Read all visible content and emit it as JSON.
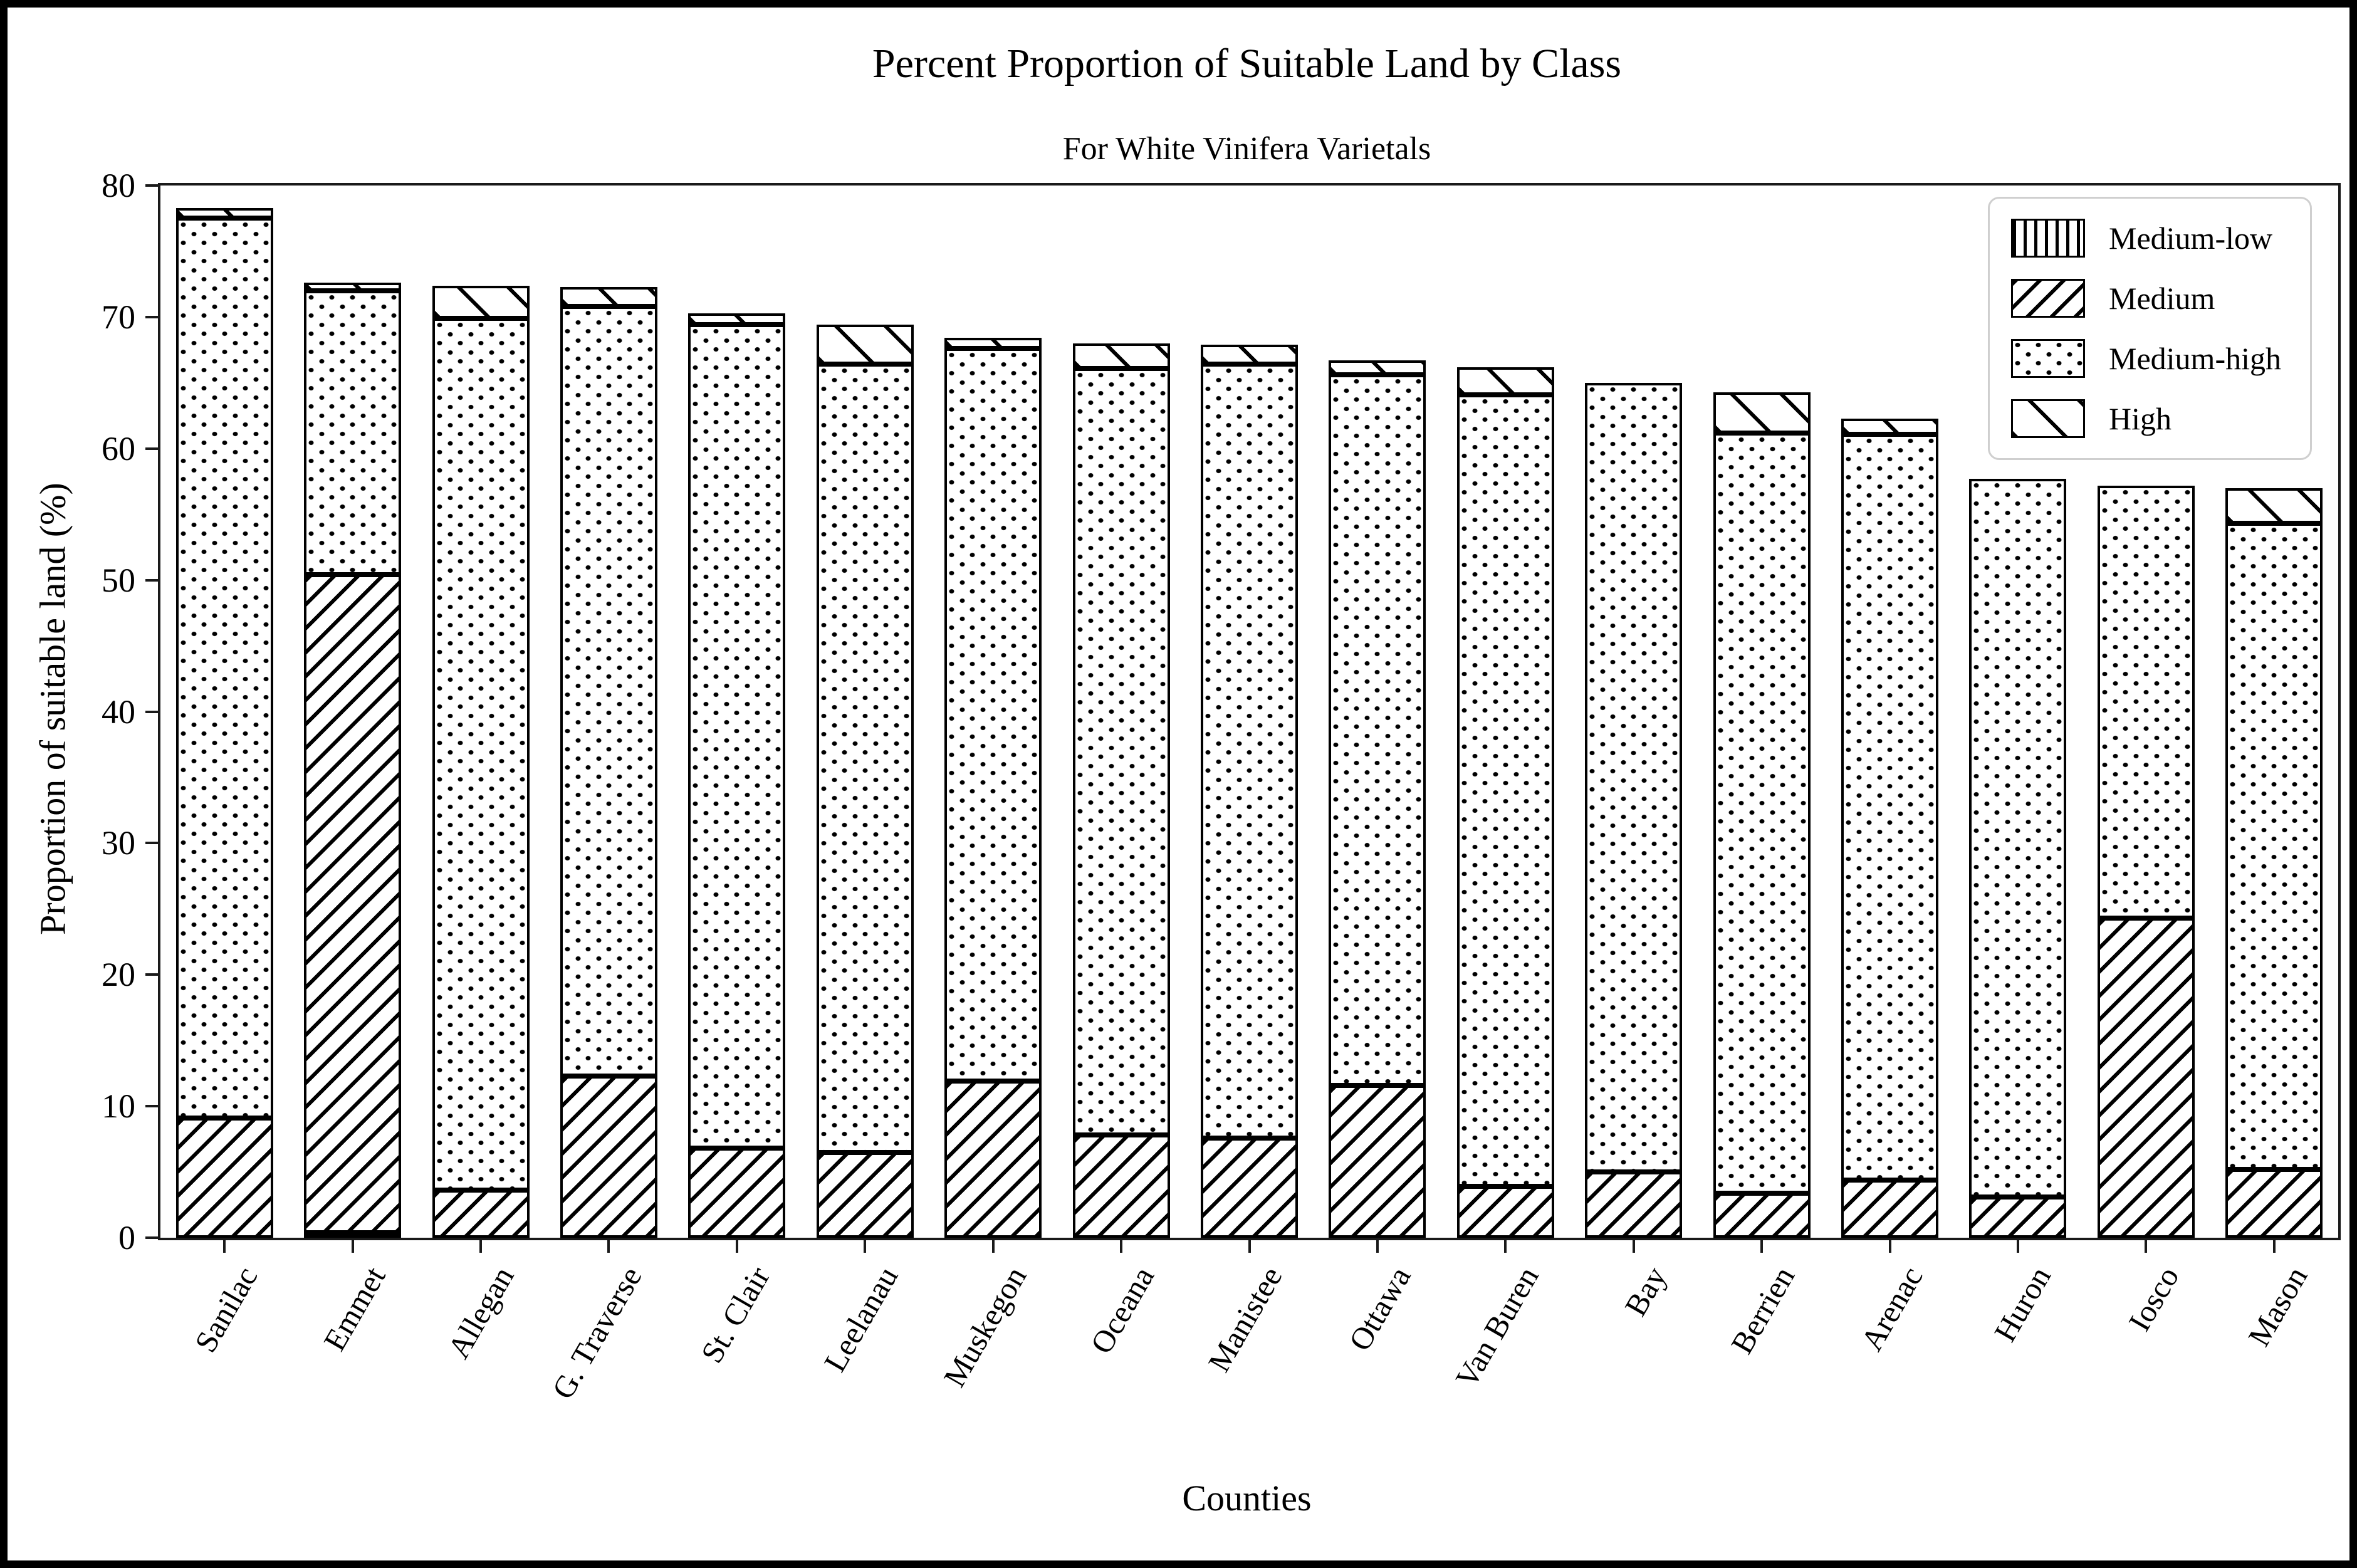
{
  "chart_data": {
    "type": "bar",
    "stacked": true,
    "title": "Percent Proportion of Suitable Land by Class",
    "subtitle": "For White Vinifera Varietals",
    "xlabel": "Counties",
    "ylabel": "Proportion of suitable land (%)",
    "ylim": [
      0,
      80
    ],
    "yticks": [
      0,
      10,
      20,
      30,
      40,
      50,
      60,
      70,
      80
    ],
    "grid": false,
    "legend_position": "upper right",
    "foreground_color": "#000000",
    "background_color": "#ffffff",
    "categories": [
      "Sanilac",
      "Emmet",
      "Allegan",
      "G. Traverse",
      "St. Clair",
      "Leelanau",
      "Muskegon",
      "Oceana",
      "Manistee",
      "Ottawa",
      "Van Buren",
      "Bay",
      "Berrien",
      "Arenac",
      "Huron",
      "Iosco",
      "Mason"
    ],
    "series": [
      {
        "name": "Medium-low",
        "pattern": "vertical-lines",
        "values": [
          0,
          0.4,
          0,
          0,
          0,
          0,
          0,
          0,
          0,
          0,
          0,
          0,
          0,
          0,
          0,
          0,
          0
        ]
      },
      {
        "name": "Medium",
        "pattern": "forward-diagonal",
        "values": [
          9.1,
          50.0,
          3.6,
          12.3,
          6.8,
          6.5,
          11.9,
          7.8,
          7.6,
          11.6,
          3.9,
          5.0,
          3.4,
          4.4,
          3.1,
          24.3,
          5.2
        ]
      },
      {
        "name": "Medium-high",
        "pattern": "dots",
        "values": [
          68.4,
          21.6,
          66.3,
          58.5,
          62.6,
          59.9,
          55.7,
          58.3,
          58.8,
          54.0,
          60.2,
          60.0,
          57.8,
          56.7,
          54.6,
          32.9,
          49.1
        ]
      },
      {
        "name": "High",
        "pattern": "back-diagonal",
        "values": [
          0.8,
          0.6,
          2.5,
          1.5,
          0.9,
          3.0,
          0.8,
          1.9,
          1.5,
          1.1,
          2.1,
          0,
          3.1,
          1.2,
          0,
          0,
          2.7
        ]
      }
    ],
    "totals": [
      78.3,
      72.6,
      72.4,
      72.3,
      70.3,
      69.4,
      68.4,
      68.0,
      67.9,
      66.6,
      66.2,
      65.0,
      64.3,
      62.3,
      57.7,
      57.2,
      57.0
    ]
  }
}
